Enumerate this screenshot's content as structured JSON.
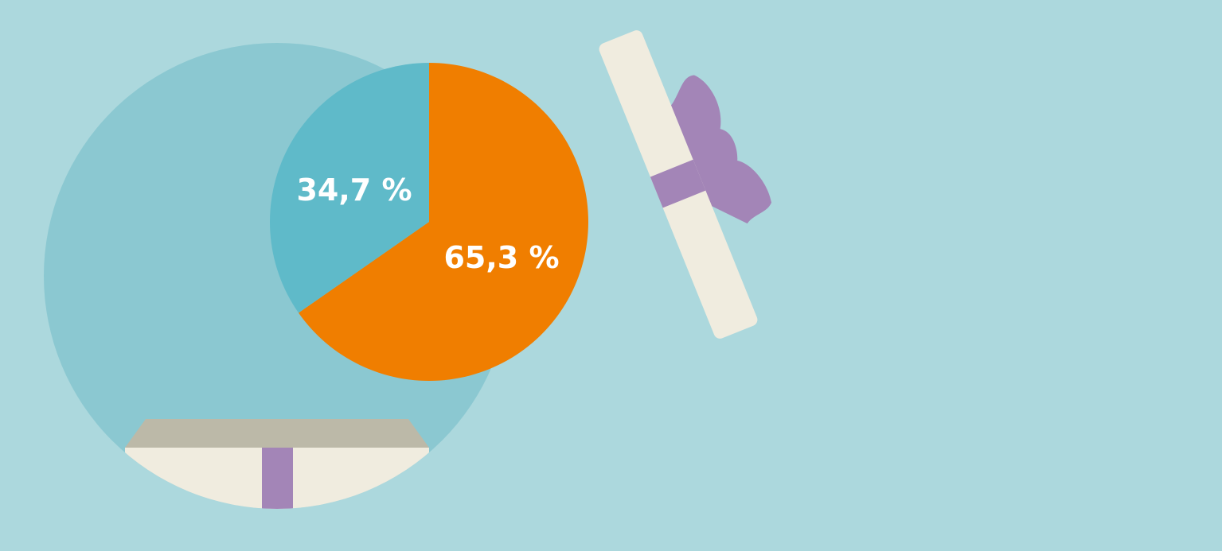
{
  "chart_data": {
    "type": "pie",
    "slices": [
      {
        "label": "65,3 %",
        "value": 65.3,
        "color": "#f07e00"
      },
      {
        "label": "34,7 %",
        "value": 34.7,
        "color": "#5fbac9"
      }
    ]
  },
  "colors": {
    "background": "#acd8dd",
    "backdrop_circle": "#8bc8d1",
    "gift_box": "#f0ecdf",
    "gift_lid_shadow": "#bcb9a8",
    "ribbon": "#a385b7"
  }
}
